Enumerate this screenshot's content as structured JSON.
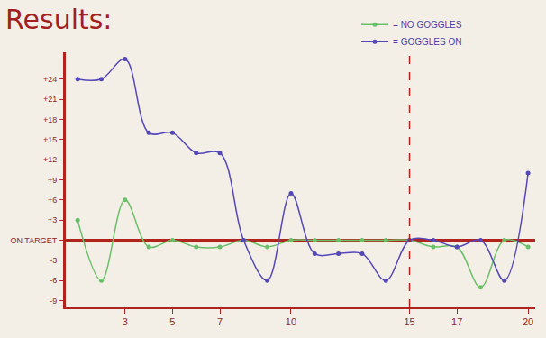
{
  "chart_data": {
    "type": "line",
    "title": "Results:",
    "x": [
      1,
      2,
      3,
      4,
      5,
      6,
      7,
      8,
      9,
      10,
      11,
      12,
      13,
      14,
      15,
      16,
      17,
      18,
      19,
      20
    ],
    "series": [
      {
        "name": "= NO GOGGLES",
        "color": "#6cbf6a",
        "values": [
          3,
          -6,
          6,
          -1,
          0,
          -1,
          -1,
          0,
          -1,
          0,
          0,
          0,
          0,
          0,
          0,
          -1,
          -1,
          -7,
          0,
          -1
        ]
      },
      {
        "name": "= GOGGLES ON",
        "color": "#5447b8",
        "values": [
          24,
          24,
          27,
          16,
          16,
          13,
          13,
          0,
          -6,
          7,
          -2,
          -2,
          -2,
          -6,
          0,
          0,
          -1,
          0,
          -6,
          10
        ]
      }
    ],
    "xlim": [
      0.5,
      20.3
    ],
    "xticks": [
      3,
      5,
      7,
      10,
      15,
      17,
      20
    ],
    "ylim": [
      -10,
      28
    ],
    "yticks": [
      {
        "value": 24,
        "label": "+24"
      },
      {
        "value": 21,
        "label": "+21"
      },
      {
        "value": 18,
        "label": "+18"
      },
      {
        "value": 15,
        "label": "+15"
      },
      {
        "value": 12,
        "label": "+12"
      },
      {
        "value": 9,
        "label": "+9"
      },
      {
        "value": 6,
        "label": "+6"
      },
      {
        "value": 3,
        "label": "+3"
      },
      {
        "value": 0,
        "label": "ON TARGET"
      },
      -3,
      -6,
      -9
    ],
    "vlines": [
      15
    ],
    "grid": false,
    "legend": "top right",
    "marker": "circle",
    "line_style": "spline"
  }
}
